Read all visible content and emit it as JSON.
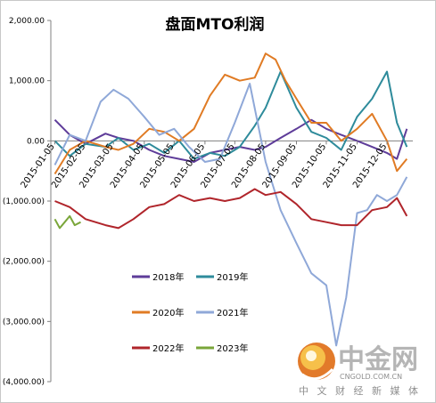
{
  "chart_data": {
    "type": "line",
    "title": "盘面MTO利润",
    "xlabel": "",
    "ylabel": "",
    "ylim": [
      -4000,
      2000
    ],
    "yticks": [
      "2,000.00",
      "1,000.00",
      "0.00",
      "(1,000.00)",
      "(2,000.00)",
      "(3,000.00)",
      "(4,000.00)"
    ],
    "ytick_values": [
      2000,
      1000,
      0,
      -1000,
      -2000,
      -3000,
      -4000
    ],
    "xtick_labels": [
      "2015-01-05",
      "2015-02-05",
      "2015-03-05",
      "2015-04-05",
      "2015-05-05",
      "2015-06-05",
      "2015-07-05",
      "2015-08-05",
      "2015-09-05",
      "2015-10-05",
      "2015-11-05",
      "2015-12-05"
    ],
    "x_range": [
      "2015-01-01",
      "2015-12-31"
    ],
    "legend_position": "bottom-left",
    "grid": false,
    "series": [
      {
        "name": "2018年",
        "color": "#5e3c99",
        "dates": [
          "2015-01-05",
          "2015-01-20",
          "2015-02-05",
          "2015-02-25",
          "2015-03-10",
          "2015-03-25",
          "2015-04-10",
          "2015-04-25",
          "2015-05-10",
          "2015-05-25",
          "2015-06-10",
          "2015-06-25",
          "2015-07-10",
          "2015-07-25",
          "2015-08-05",
          "2015-08-20",
          "2015-09-05",
          "2015-09-20",
          "2015-10-05",
          "2015-10-20",
          "2015-11-05",
          "2015-11-20",
          "2015-12-05",
          "2015-12-15",
          "2015-12-25"
        ],
        "values": [
          350,
          100,
          -50,
          120,
          50,
          0,
          -150,
          -250,
          -300,
          -350,
          -200,
          -150,
          -100,
          -150,
          -100,
          50,
          200,
          350,
          200,
          100,
          0,
          -100,
          -200,
          -300,
          200
        ]
      },
      {
        "name": "2019年",
        "color": "#2e8b9b",
        "dates": [
          "2015-01-05",
          "2015-01-20",
          "2015-02-05",
          "2015-02-25",
          "2015-03-10",
          "2015-03-25",
          "2015-04-10",
          "2015-04-25",
          "2015-05-10",
          "2015-05-25",
          "2015-06-10",
          "2015-06-25",
          "2015-07-10",
          "2015-07-25",
          "2015-08-05",
          "2015-08-20",
          "2015-09-05",
          "2015-09-20",
          "2015-10-05",
          "2015-10-20",
          "2015-11-05",
          "2015-11-20",
          "2015-12-05",
          "2015-12-15",
          "2015-12-25"
        ],
        "values": [
          0,
          -250,
          -50,
          -100,
          50,
          -150,
          -50,
          -200,
          0,
          -300,
          -200,
          -250,
          -100,
          250,
          550,
          1150,
          550,
          150,
          50,
          -150,
          400,
          700,
          1150,
          300,
          -100
        ]
      },
      {
        "name": "2020年",
        "color": "#e07b24",
        "dates": [
          "2015-01-05",
          "2015-01-20",
          "2015-02-05",
          "2015-02-25",
          "2015-03-10",
          "2015-03-25",
          "2015-04-10",
          "2015-04-25",
          "2015-05-10",
          "2015-05-25",
          "2015-06-10",
          "2015-06-25",
          "2015-07-10",
          "2015-07-25",
          "2015-08-05",
          "2015-08-15",
          "2015-08-25",
          "2015-09-05",
          "2015-09-20",
          "2015-10-05",
          "2015-10-20",
          "2015-11-05",
          "2015-11-20",
          "2015-12-05",
          "2015-12-15",
          "2015-12-25"
        ],
        "values": [
          -550,
          -150,
          0,
          -100,
          -150,
          -50,
          200,
          150,
          0,
          200,
          750,
          1100,
          1000,
          1050,
          1450,
          1350,
          1000,
          700,
          300,
          300,
          0,
          200,
          450,
          0,
          -500,
          -300
        ]
      },
      {
        "name": "2021年",
        "color": "#8fa8d8",
        "dates": [
          "2015-01-05",
          "2015-01-20",
          "2015-02-05",
          "2015-02-20",
          "2015-03-05",
          "2015-03-20",
          "2015-04-05",
          "2015-04-20",
          "2015-05-05",
          "2015-05-20",
          "2015-06-05",
          "2015-06-20",
          "2015-07-05",
          "2015-07-20",
          "2015-08-05",
          "2015-08-20",
          "2015-09-05",
          "2015-09-20",
          "2015-10-05",
          "2015-10-15",
          "2015-10-25",
          "2015-11-05",
          "2015-11-15",
          "2015-11-25",
          "2015-12-05",
          "2015-12-15",
          "2015-12-25"
        ],
        "values": [
          -400,
          100,
          0,
          650,
          850,
          700,
          400,
          100,
          200,
          -100,
          -350,
          -300,
          300,
          950,
          -350,
          -1150,
          -1700,
          -2200,
          -2400,
          -3400,
          -2600,
          -1200,
          -1150,
          -900,
          -1000,
          -900,
          -600
        ]
      },
      {
        "name": "2022年",
        "color": "#b0252b",
        "dates": [
          "2015-01-05",
          "2015-01-20",
          "2015-02-05",
          "2015-02-25",
          "2015-03-10",
          "2015-03-25",
          "2015-04-10",
          "2015-04-25",
          "2015-05-10",
          "2015-05-25",
          "2015-06-10",
          "2015-06-25",
          "2015-07-10",
          "2015-07-25",
          "2015-08-05",
          "2015-08-20",
          "2015-09-05",
          "2015-09-20",
          "2015-10-05",
          "2015-10-20",
          "2015-11-05",
          "2015-11-20",
          "2015-12-05",
          "2015-12-15",
          "2015-12-25"
        ],
        "values": [
          -1000,
          -1100,
          -1300,
          -1400,
          -1450,
          -1300,
          -1100,
          -1050,
          -900,
          -1000,
          -950,
          -1000,
          -950,
          -800,
          -900,
          -850,
          -1050,
          -1300,
          -1350,
          -1400,
          -1400,
          -1150,
          -1100,
          -950,
          -1250
        ]
      },
      {
        "name": "2023年",
        "color": "#7aa63a",
        "dates": [
          "2015-01-05",
          "2015-01-10",
          "2015-01-15",
          "2015-01-20",
          "2015-01-25",
          "2015-01-31"
        ],
        "values": [
          -1300,
          -1450,
          -1350,
          -1250,
          -1400,
          -1350
        ]
      }
    ]
  },
  "watermark": {
    "main": "中金网",
    "url": "CNGOLD.COM.CN",
    "sub": "中 文 财 经 新 媒 体"
  }
}
